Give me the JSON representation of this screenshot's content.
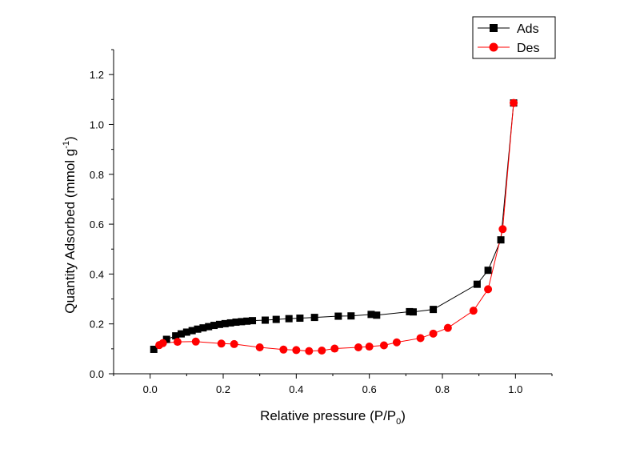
{
  "chart_data": {
    "type": "scatter",
    "title": "",
    "xlabel_main": "Relative pressure (P/P",
    "xlabel_sub": "0",
    "xlabel_end": ")",
    "ylabel_main": "Quantity Adsorbed (mmol g",
    "ylabel_sup": "-1",
    "ylabel_end": ")",
    "xlim": [
      -0.1,
      1.1
    ],
    "ylim": [
      0.0,
      1.3
    ],
    "x_ticks": [
      "0.0",
      "0.2",
      "0.4",
      "0.6",
      "0.8",
      "1.0"
    ],
    "y_ticks": [
      "0.0",
      "0.2",
      "0.4",
      "0.6",
      "0.8",
      "1.0",
      "1.2"
    ],
    "grid": false,
    "legend_position": "top-right",
    "series": [
      {
        "name": "Ads",
        "color": "#000000",
        "marker": "square",
        "points": [
          [
            0.01,
            0.098
          ],
          [
            0.045,
            0.138
          ],
          [
            0.07,
            0.152
          ],
          [
            0.085,
            0.16
          ],
          [
            0.1,
            0.167
          ],
          [
            0.115,
            0.173
          ],
          [
            0.13,
            0.179
          ],
          [
            0.145,
            0.184
          ],
          [
            0.16,
            0.189
          ],
          [
            0.175,
            0.194
          ],
          [
            0.19,
            0.198
          ],
          [
            0.205,
            0.201
          ],
          [
            0.22,
            0.204
          ],
          [
            0.235,
            0.207
          ],
          [
            0.25,
            0.209
          ],
          [
            0.265,
            0.211
          ],
          [
            0.28,
            0.213
          ],
          [
            0.315,
            0.215
          ],
          [
            0.345,
            0.218
          ],
          [
            0.38,
            0.221
          ],
          [
            0.41,
            0.223
          ],
          [
            0.45,
            0.226
          ],
          [
            0.515,
            0.231
          ],
          [
            0.55,
            0.232
          ],
          [
            0.605,
            0.238
          ],
          [
            0.62,
            0.235
          ],
          [
            0.71,
            0.249
          ],
          [
            0.72,
            0.248
          ],
          [
            0.775,
            0.258
          ],
          [
            0.895,
            0.359
          ],
          [
            0.925,
            0.415
          ],
          [
            0.96,
            0.537
          ],
          [
            0.995,
            1.086
          ]
        ]
      },
      {
        "name": "Des",
        "color": "#ff0000",
        "marker": "circle",
        "points": [
          [
            0.995,
            1.086
          ],
          [
            0.965,
            0.58
          ],
          [
            0.925,
            0.339
          ],
          [
            0.885,
            0.253
          ],
          [
            0.815,
            0.184
          ],
          [
            0.775,
            0.161
          ],
          [
            0.74,
            0.143
          ],
          [
            0.675,
            0.126
          ],
          [
            0.64,
            0.114
          ],
          [
            0.6,
            0.109
          ],
          [
            0.57,
            0.106
          ],
          [
            0.505,
            0.101
          ],
          [
            0.47,
            0.093
          ],
          [
            0.435,
            0.091
          ],
          [
            0.4,
            0.095
          ],
          [
            0.365,
            0.097
          ],
          [
            0.3,
            0.106
          ],
          [
            0.23,
            0.119
          ],
          [
            0.195,
            0.121
          ],
          [
            0.125,
            0.129
          ],
          [
            0.075,
            0.128
          ],
          [
            0.035,
            0.123
          ],
          [
            0.025,
            0.115
          ]
        ]
      }
    ]
  }
}
